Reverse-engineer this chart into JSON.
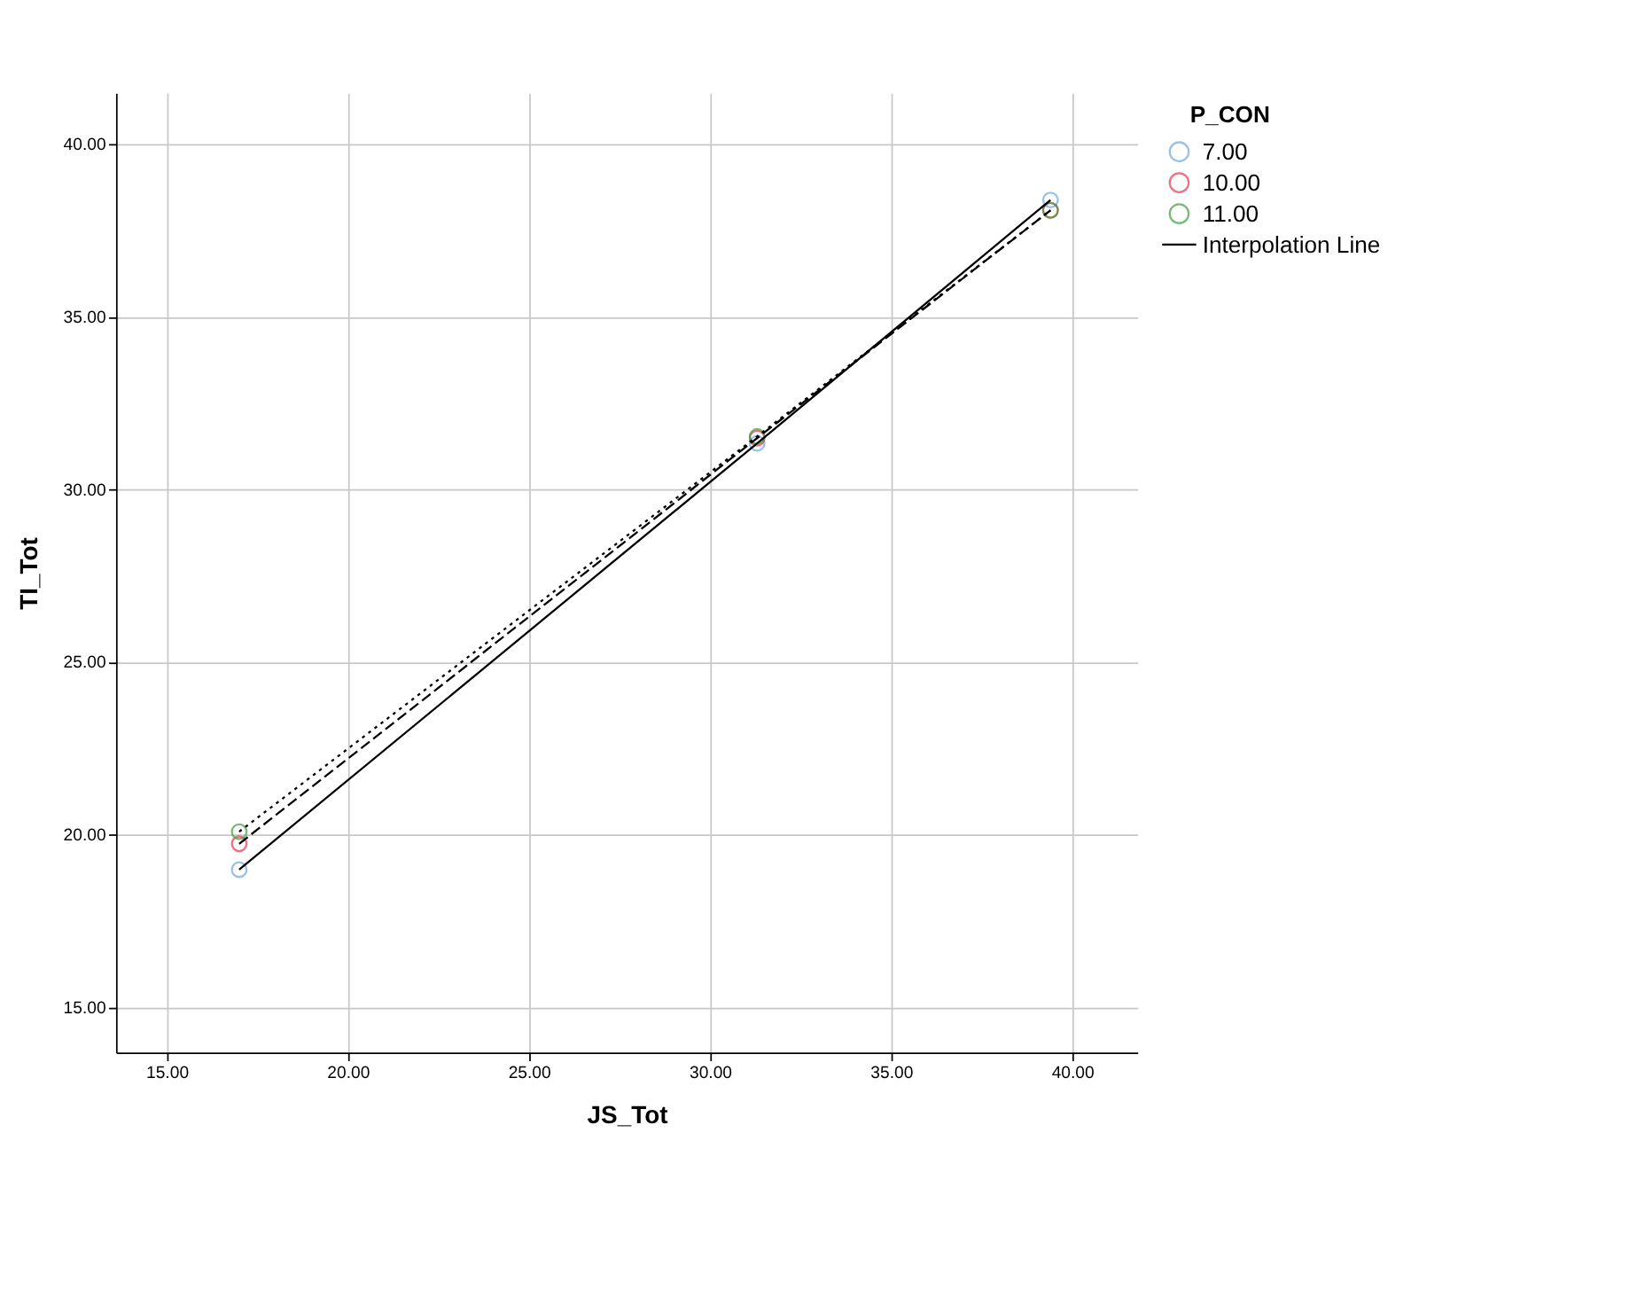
{
  "chart_data": {
    "type": "scatter",
    "xlabel": "JS_Tot",
    "ylabel": "TI_Tot",
    "legend_title": "P_CON",
    "legend": "right",
    "grid": true,
    "xlim": [
      13.6,
      41.8
    ],
    "xticks": [
      {
        "value": 15,
        "label": "15.00"
      },
      {
        "value": 20,
        "label": "20.00"
      },
      {
        "value": 25,
        "label": "25.00"
      },
      {
        "value": 30,
        "label": "30.00"
      },
      {
        "value": 35,
        "label": "35.00"
      },
      {
        "value": 40,
        "label": "40.00"
      }
    ],
    "ylim": [
      13.7,
      41.5
    ],
    "yticks": [
      {
        "value": 15,
        "label": "15.00"
      },
      {
        "value": 20,
        "label": "20.00"
      },
      {
        "value": 25,
        "label": "25.00"
      },
      {
        "value": 30,
        "label": "30.00"
      },
      {
        "value": 35,
        "label": "35.00"
      },
      {
        "value": 40,
        "label": "40.00"
      }
    ],
    "x": [
      17,
      31.3,
      39.4
    ],
    "series": [
      {
        "name": "7.00",
        "marker": "circle",
        "color": "#6ea6e8",
        "values": [
          19.0,
          31.35,
          38.4
        ]
      },
      {
        "name": "10.00",
        "marker": "circle",
        "color": "#e8344e",
        "values": [
          19.75,
          31.5,
          38.1
        ]
      },
      {
        "name": "11.00",
        "marker": "circle",
        "color": "#3f9e3f",
        "values": [
          20.1,
          31.55,
          38.1
        ]
      },
      {
        "name": "Interpolation Line",
        "type": "line",
        "line_style": "solid",
        "color": "#000000",
        "values": [
          19.0,
          31.35,
          38.4
        ]
      },
      {
        "type": "line",
        "line_style": "dashed",
        "color": "#000000",
        "values": [
          19.75,
          31.5,
          38.1
        ]
      },
      {
        "type": "line",
        "line_style": "dotted",
        "color": "#000000",
        "values": [
          20.1,
          31.55,
          38.1
        ]
      }
    ]
  }
}
